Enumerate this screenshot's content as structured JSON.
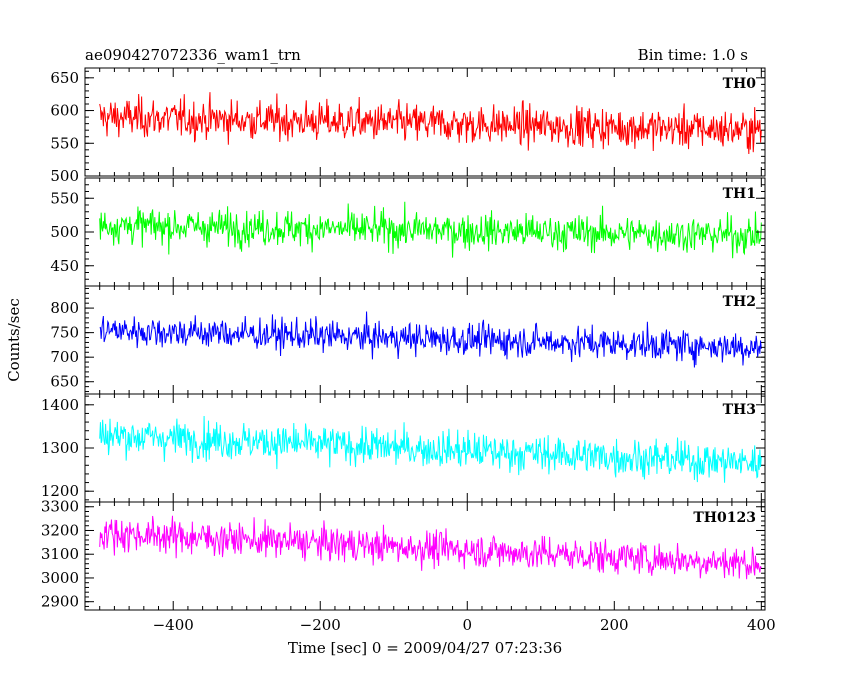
{
  "header": {
    "title": "ae090427072336_wam1_trn",
    "bin_time": "Bin time: 1.0 s"
  },
  "chart_data": {
    "type": "line",
    "xlabel": "Time [sec] 0 = 2009/04/27 07:23:36",
    "ylabel": "Counts/sec",
    "xlim": [
      -520,
      405
    ],
    "data_range": [
      -500,
      400
    ],
    "x_ticks": [
      -400,
      -200,
      0,
      200,
      400
    ],
    "x_tick_labels": [
      "−400",
      "−200",
      "0",
      "200",
      "400"
    ],
    "grid": false,
    "panels": [
      {
        "name": "TH0",
        "color": "#ff0000",
        "ylim": [
          500,
          665
        ],
        "y_ticks": [
          500,
          550,
          600,
          650
        ],
        "y_tick_labels": [
          "500",
          "550",
          "600",
          "650"
        ],
        "trend_start": 590,
        "trend_end": 570,
        "noise_sd": 25
      },
      {
        "name": "TH1",
        "color": "#00ff00",
        "ylim": [
          420,
          580
        ],
        "y_ticks": [
          450,
          500,
          550
        ],
        "y_tick_labels": [
          "450",
          "500",
          "550"
        ],
        "trend_start": 510,
        "trend_end": 495,
        "noise_sd": 22
      },
      {
        "name": "TH2",
        "color": "#0000ff",
        "ylim": [
          625,
          845
        ],
        "y_ticks": [
          650,
          700,
          750,
          800
        ],
        "y_tick_labels": [
          "650",
          "700",
          "750",
          "800"
        ],
        "trend_start": 755,
        "trend_end": 720,
        "noise_sd": 27
      },
      {
        "name": "TH3",
        "color": "#00ffff",
        "ylim": [
          1175,
          1425
        ],
        "y_ticks": [
          1200,
          1300,
          1400
        ],
        "y_tick_labels": [
          "1200",
          "1300",
          "1400"
        ],
        "trend_start": 1330,
        "trend_end": 1265,
        "noise_sd": 36
      },
      {
        "name": "TH0123",
        "color": "#ff00ff",
        "ylim": [
          2865,
          3320
        ],
        "y_ticks": [
          2900,
          3000,
          3100,
          3200,
          3300
        ],
        "y_tick_labels": [
          "2900",
          "3000",
          "3100",
          "3200",
          "3300"
        ],
        "trend_start": 3190,
        "trend_end": 3060,
        "noise_sd": 60
      }
    ]
  }
}
